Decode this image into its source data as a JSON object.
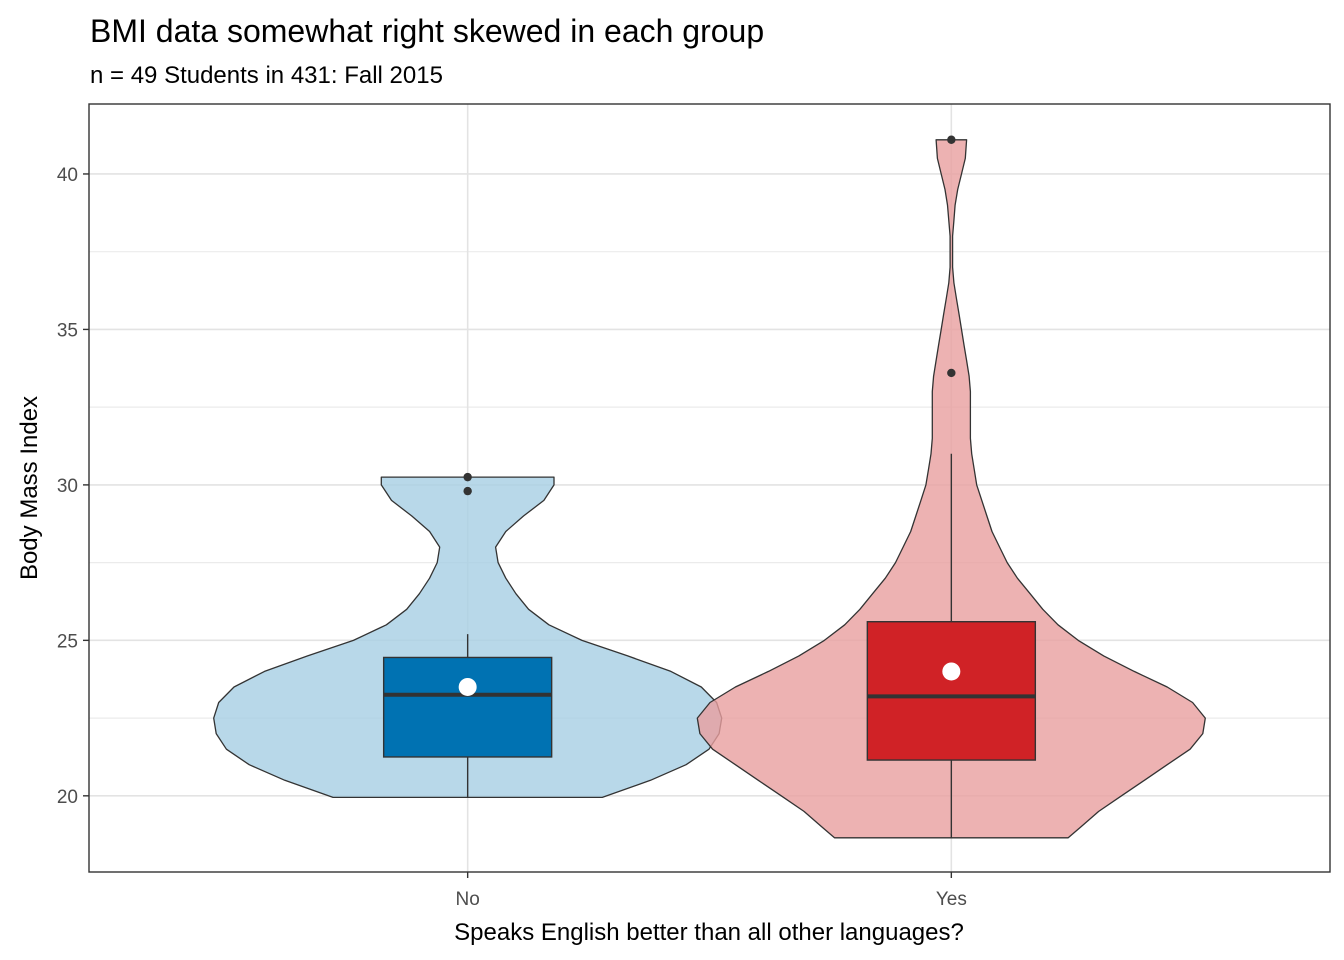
{
  "chart_data": {
    "type": "violin",
    "title": "BMI data somewhat right skewed in each group",
    "subtitle": "n = 49 Students in 431: Fall 2015",
    "xlabel": "Speaks English better than all other languages?",
    "ylabel": "Body Mass Index",
    "categories": [
      "No",
      "Yes"
    ],
    "ylim": [
      17.55,
      42.25
    ],
    "yticks": [
      20,
      25,
      30,
      35,
      40
    ],
    "grid": true,
    "legend": "none",
    "groups": [
      {
        "category": "No",
        "violin_color": "#a6cee3",
        "box_color": "#0072b2",
        "violin": {
          "y": [
            19.95,
            20.5,
            21.0,
            21.5,
            22.0,
            22.5,
            23.0,
            23.5,
            24.0,
            24.5,
            25.0,
            25.5,
            26.0,
            26.5,
            27.0,
            27.5,
            28.0,
            28.5,
            29.0,
            29.5,
            30.0,
            30.25
          ],
          "density": [
            0.53,
            0.72,
            0.86,
            0.95,
            0.99,
            1.0,
            0.98,
            0.92,
            0.8,
            0.63,
            0.45,
            0.32,
            0.24,
            0.19,
            0.15,
            0.12,
            0.11,
            0.15,
            0.22,
            0.3,
            0.34,
            0.34
          ]
        },
        "box": {
          "lower_whisker": 19.95,
          "q1": 21.25,
          "median": 23.25,
          "q3": 24.45,
          "upper_whisker": 25.2,
          "mean": 23.5
        },
        "outliers": [
          29.8,
          30.25
        ]
      },
      {
        "category": "Yes",
        "violin_color": "#e99f9f",
        "box_color": "#d02226",
        "violin": {
          "y": [
            18.65,
            19.0,
            19.5,
            20.0,
            20.5,
            21.0,
            21.5,
            22.0,
            22.5,
            23.0,
            23.5,
            24.0,
            24.5,
            25.0,
            25.5,
            26.0,
            26.5,
            27.0,
            27.5,
            28.0,
            28.5,
            29.0,
            29.5,
            30.0,
            30.5,
            31.0,
            31.5,
            32.0,
            32.5,
            33.0,
            33.5,
            34.0,
            34.5,
            35.0,
            35.5,
            36.0,
            36.5,
            37.0,
            37.5,
            38.0,
            38.5,
            39.0,
            39.5,
            40.0,
            40.5,
            41.1
          ],
          "density": [
            0.46,
            0.51,
            0.58,
            0.67,
            0.76,
            0.85,
            0.94,
            0.99,
            1.0,
            0.95,
            0.85,
            0.72,
            0.6,
            0.5,
            0.42,
            0.36,
            0.31,
            0.26,
            0.22,
            0.19,
            0.16,
            0.14,
            0.12,
            0.1,
            0.09,
            0.08,
            0.075,
            0.075,
            0.075,
            0.075,
            0.07,
            0.06,
            0.05,
            0.04,
            0.03,
            0.02,
            0.01,
            0.005,
            0.005,
            0.005,
            0.01,
            0.015,
            0.025,
            0.04,
            0.055,
            0.06
          ]
        },
        "box": {
          "lower_whisker": 18.65,
          "q1": 21.15,
          "median": 23.2,
          "q3": 25.6,
          "upper_whisker": 31.0,
          "mean": 24.0
        },
        "outliers": [
          33.6,
          41.1
        ]
      }
    ]
  }
}
